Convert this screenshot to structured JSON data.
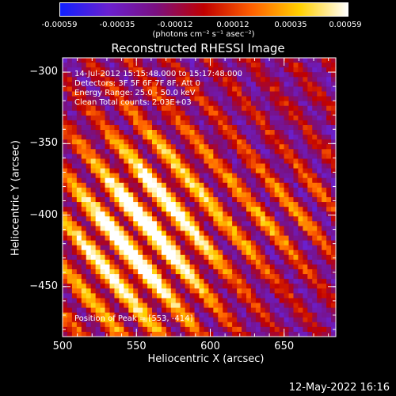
{
  "colorbar": {
    "ticks": [
      "-0.00059",
      "-0.00035",
      "-0.00012",
      "0.00012",
      "0.00035",
      "0.00059"
    ],
    "units": "(photons cm⁻² s⁻¹ asec⁻²)",
    "colors": [
      "#1020ff",
      "#6a20d0",
      "#7a1080",
      "#c00000",
      "#ff6000",
      "#ffd000",
      "#ffffff"
    ]
  },
  "chart_data": {
    "type": "heatmap",
    "title": "Reconstructed RHESSI Image",
    "xlabel": "Heliocentric X (arcsec)",
    "ylabel": "Heliocentric Y (arcsec)",
    "xlim": [
      500,
      685
    ],
    "ylim": [
      -485,
      -290
    ],
    "xticks": [
      500,
      550,
      600,
      650
    ],
    "yticks": [
      -300,
      -350,
      -400,
      -450
    ],
    "xtick_labels": [
      "500",
      "550",
      "600",
      "650"
    ],
    "ytick_labels": [
      "−300",
      "−350",
      "−400",
      "−450"
    ],
    "value_range": [
      -0.00059,
      0.00059
    ],
    "annotations": [
      "14-Jul-2012 15:15:48.000 to 15:17:48.000",
      "Detectors: 3F 5F 6F 7F 8F, Att 0",
      "Energy Range: 25.0 - 50.0 keV",
      "Clean    Total counts: 2.03E+03"
    ],
    "peak_label": "Position of Peak = [553, -414]",
    "peak_position": [
      553,
      -414
    ]
  },
  "footer": {
    "date": "12-May-2022 16:16"
  }
}
